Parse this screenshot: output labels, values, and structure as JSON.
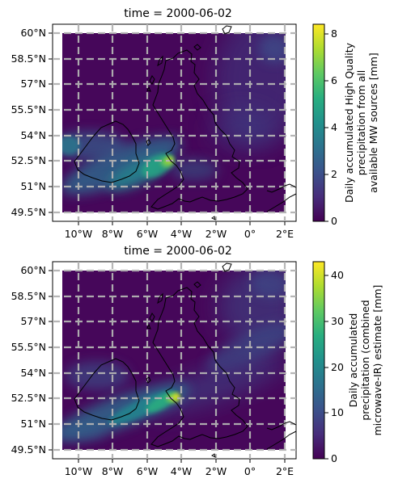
{
  "chart_data": [
    {
      "type": "heatmap",
      "title": "time = 2000-06-02",
      "x_tick_labels": [
        "10°W",
        "8°W",
        "6°W",
        "4°W",
        "2°W",
        "0°",
        "2°E"
      ],
      "x_tick_values": [
        -10,
        -8,
        -6,
        -4,
        -2,
        0,
        2
      ],
      "y_tick_labels": [
        "60°N",
        "58.5°N",
        "57°N",
        "55.5°N",
        "54°N",
        "52.5°N",
        "51°N",
        "49.5°N"
      ],
      "y_tick_values": [
        60,
        58.5,
        57,
        55.5,
        54,
        52.5,
        51,
        49.5
      ],
      "xlim": [
        -11.2,
        2.8
      ],
      "ylim": [
        48.9,
        60.5
      ],
      "grid": true,
      "colormap": "viridis",
      "colorbar": {
        "label_lines": [
          "Daily accumulated High Quality",
          "precipitation from all",
          "available MW sources [mm]"
        ],
        "ticks": [
          0,
          2,
          4,
          6,
          8
        ],
        "tick_labels": [
          "0",
          "2",
          "4",
          "6",
          "8"
        ],
        "range": [
          0,
          8.4
        ]
      },
      "rain_bands": [
        {
          "lon": -4.5,
          "lat": 52.4,
          "value": 8.0
        },
        {
          "lon": -6.0,
          "lat": 51.8,
          "value": 4.2
        },
        {
          "lon": -8.5,
          "lat": 53.0,
          "value": 2.0
        },
        {
          "lon": -10.8,
          "lat": 53.2,
          "value": 1.6
        },
        {
          "lon": -0.5,
          "lat": 55.5,
          "value": 1.5
        },
        {
          "lon": 2.0,
          "lat": 59.0,
          "value": 1.8
        }
      ]
    },
    {
      "type": "heatmap",
      "title": "time = 2000-06-02",
      "x_tick_labels": [
        "10°W",
        "8°W",
        "6°W",
        "4°W",
        "2°W",
        "0°",
        "2°E"
      ],
      "x_tick_values": [
        -10,
        -8,
        -6,
        -4,
        -2,
        0,
        2
      ],
      "y_tick_labels": [
        "60°N",
        "58.5°N",
        "57°N",
        "55.5°N",
        "54°N",
        "52.5°N",
        "51°N",
        "49.5°N"
      ],
      "y_tick_values": [
        60,
        58.5,
        57,
        55.5,
        54,
        52.5,
        51,
        49.5
      ],
      "xlim": [
        -11.2,
        2.8
      ],
      "ylim": [
        48.9,
        60.5
      ],
      "grid": true,
      "colormap": "viridis",
      "colorbar": {
        "label_lines": [
          "Daily accumulated",
          "precipitation (combined",
          "microwave-IR) estimate [mm]"
        ],
        "ticks": [
          0,
          10,
          20,
          30,
          40
        ],
        "tick_labels": [
          "0",
          "10",
          "20",
          "30",
          "40"
        ],
        "range": [
          0,
          43
        ]
      },
      "rain_bands": [
        {
          "lon": -4.4,
          "lat": 52.4,
          "value": 42.0
        },
        {
          "lon": -6.5,
          "lat": 51.4,
          "value": 24.0
        },
        {
          "lon": -9.0,
          "lat": 50.6,
          "value": 16.0
        },
        {
          "lon": -2.0,
          "lat": 54.5,
          "value": 10.0
        },
        {
          "lon": 1.5,
          "lat": 56.5,
          "value": 9.0
        },
        {
          "lon": 2.0,
          "lat": 59.5,
          "value": 6.0
        }
      ]
    }
  ]
}
